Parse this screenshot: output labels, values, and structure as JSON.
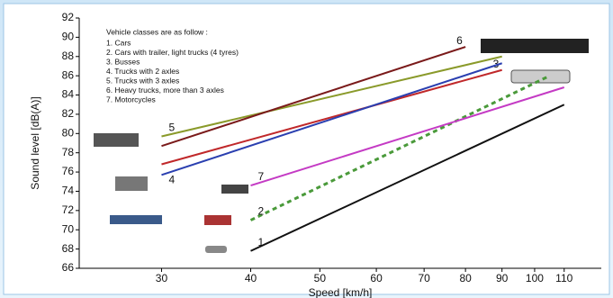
{
  "chart_data": {
    "type": "line",
    "x_label": "Speed [km/h]",
    "y_label": "Sound level [dB(A)]",
    "legend_title": "Vehicle classes are as follow :",
    "xlog": true,
    "xlim": [
      23,
      124
    ],
    "ylim": [
      66,
      92
    ],
    "xticks": [
      30,
      40,
      50,
      60,
      70,
      80,
      90,
      100,
      110
    ],
    "yticks": [
      66,
      68,
      70,
      72,
      74,
      76,
      78,
      80,
      82,
      84,
      86,
      88,
      90,
      92
    ],
    "series": [
      {
        "name": "1. Cars",
        "label": "1",
        "color": "#111111",
        "dash": false,
        "x": [
          40,
          110
        ],
        "values": [
          67.8,
          83
        ]
      },
      {
        "name": "2. Cars with trailer, light trucks (4 tyres)",
        "label": "2",
        "color": "#4a9a3a",
        "dash": true,
        "x": [
          40,
          105
        ],
        "values": [
          71,
          86
        ]
      },
      {
        "name": "3. Busses",
        "label": "3",
        "color": "#c0282a",
        "dash": false,
        "x": [
          30,
          90
        ],
        "values": [
          76.8,
          86.6
        ]
      },
      {
        "name": "4. Trucks with 2 axles",
        "label": "4",
        "color": "#2a3fb0",
        "dash": false,
        "x": [
          30,
          90
        ],
        "values": [
          75.7,
          87.3
        ]
      },
      {
        "name": "5. Trucks with 3 axles",
        "label": "5",
        "color": "#8a9a2a",
        "dash": false,
        "x": [
          30,
          90
        ],
        "values": [
          79.7,
          88
        ]
      },
      {
        "name": "6. Heavy trucks, more than 3 axles",
        "label": "6",
        "color": "#7a1a1a",
        "dash": false,
        "x": [
          30,
          80
        ],
        "values": [
          78.7,
          89
        ]
      },
      {
        "name": "7. Motorcycles",
        "label": "7",
        "color": "#c43ac4",
        "dash": false,
        "x": [
          40,
          110
        ],
        "values": [
          74.6,
          84.8
        ]
      }
    ]
  }
}
